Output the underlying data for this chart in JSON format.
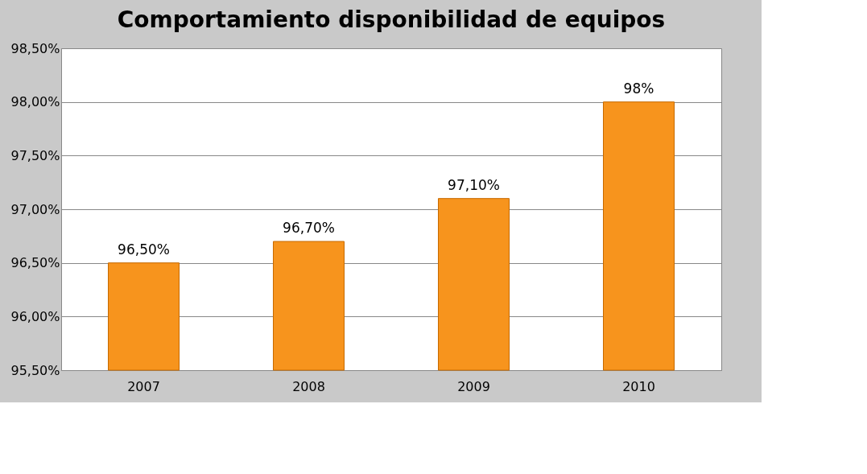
{
  "chart_data": {
    "type": "bar",
    "title": "Comportamiento disponibilidad  de equipos",
    "categories": [
      "2007",
      "2008",
      "2009",
      "2010"
    ],
    "values": [
      96.5,
      96.7,
      97.1,
      98
    ],
    "value_labels": [
      "96,50%",
      "96,70%",
      "97,10%",
      "98%"
    ],
    "color": "#f7941d",
    "ylim": [
      95.5,
      98.5
    ],
    "yticks": [
      {
        "value": 95.5,
        "label": "95,50%"
      },
      {
        "value": 96,
        "label": "96,00%"
      },
      {
        "value": 96.5,
        "label": "96,50%"
      },
      {
        "value": 97,
        "label": "97,00%"
      },
      {
        "value": 97.5,
        "label": "97,50%"
      },
      {
        "value": 98,
        "label": "98,00%"
      },
      {
        "value": 98.5,
        "label": "98,50%"
      }
    ],
    "grid": "y"
  }
}
